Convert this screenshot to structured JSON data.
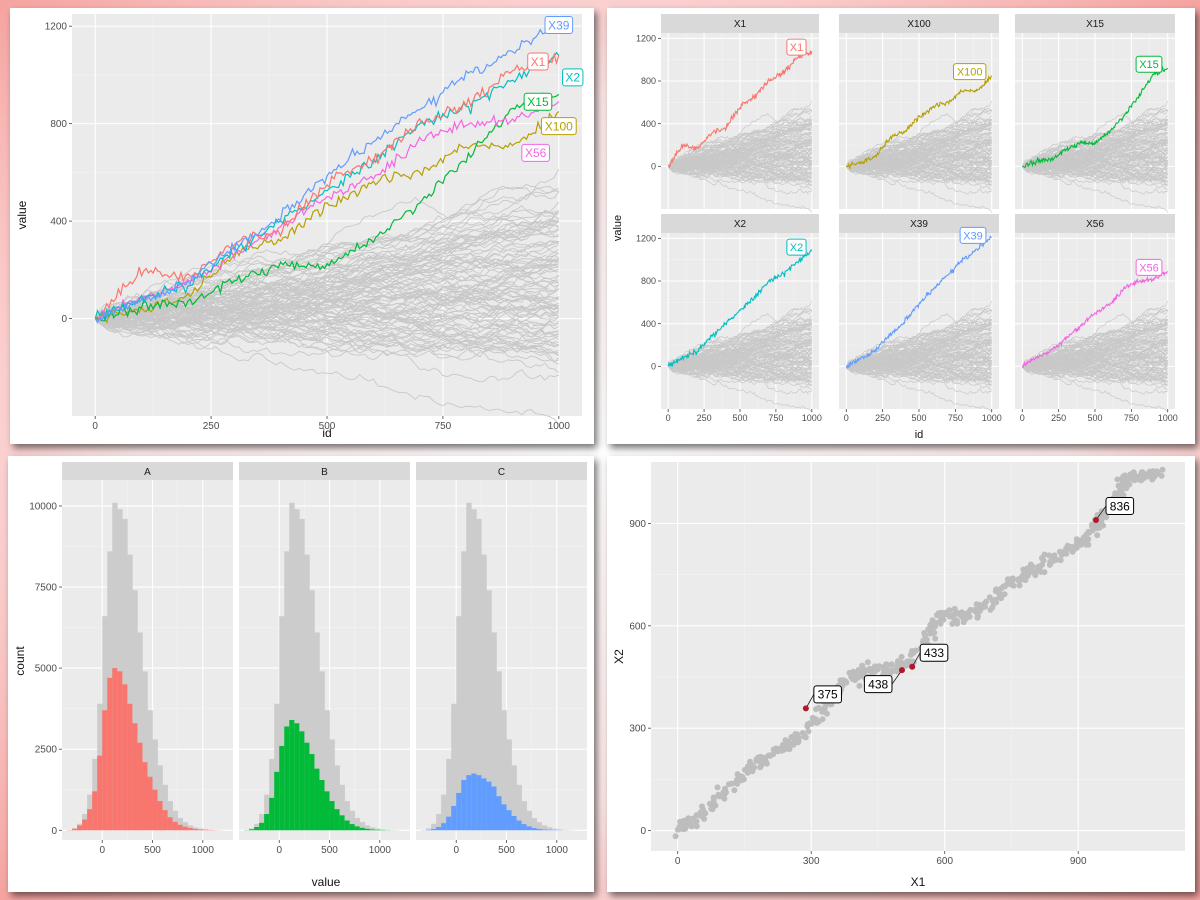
{
  "colors": {
    "X1": "#F8766D",
    "X2": "#00BFC4",
    "X15": "#00BA38",
    "X39": "#619CFF",
    "X56": "#F564E3",
    "X100": "#B79F00",
    "A": "#F8766D",
    "B": "#00BA38",
    "C": "#619CFF",
    "grey": "#c8c8c8",
    "point_hl": "#b2182b"
  },
  "chart_data": [
    {
      "type": "line",
      "title": "",
      "xlabel": "id",
      "ylabel": "value",
      "xlim": [
        -50,
        1050
      ],
      "ylim": [
        -400,
        1250
      ],
      "xticks": [
        0,
        250,
        500,
        750,
        1000
      ],
      "yticks": [
        0,
        400,
        800,
        1200
      ],
      "xtick_labels": [
        "0",
        "250",
        "500",
        "750",
        "1000"
      ],
      "ytick_labels": [
        "0",
        "400",
        "800",
        "1200"
      ],
      "background_series": "100 grey random-walk series (not individually legible)",
      "series": [
        {
          "name": "X39",
          "x": [
            0,
            100,
            200,
            300,
            400,
            500,
            600,
            700,
            800,
            900,
            1000
          ],
          "values": [
            0,
            70,
            150,
            290,
            420,
            580,
            730,
            860,
            990,
            1100,
            1210
          ]
        },
        {
          "name": "X1",
          "x": [
            0,
            100,
            200,
            300,
            400,
            500,
            600,
            700,
            800,
            900,
            1000
          ],
          "values": [
            0,
            190,
            170,
            310,
            360,
            560,
            650,
            800,
            880,
            1020,
            1080
          ]
        },
        {
          "name": "X2",
          "x": [
            0,
            100,
            200,
            300,
            400,
            500,
            600,
            700,
            800,
            900,
            1000
          ],
          "values": [
            0,
            90,
            130,
            280,
            400,
            520,
            650,
            800,
            860,
            980,
            1080
          ]
        },
        {
          "name": "X15",
          "x": [
            0,
            100,
            200,
            300,
            400,
            500,
            600,
            700,
            800,
            900,
            1000
          ],
          "values": [
            0,
            50,
            70,
            160,
            220,
            210,
            330,
            470,
            650,
            860,
            920
          ]
        },
        {
          "name": "X100",
          "x": [
            0,
            100,
            200,
            300,
            400,
            500,
            600,
            700,
            800,
            900,
            1000
          ],
          "values": [
            0,
            40,
            90,
            270,
            330,
            460,
            560,
            600,
            720,
            700,
            850
          ]
        },
        {
          "name": "X56",
          "x": [
            0,
            100,
            200,
            300,
            400,
            500,
            600,
            700,
            800,
            900,
            1000
          ],
          "values": [
            0,
            80,
            150,
            260,
            380,
            500,
            580,
            730,
            800,
            810,
            890
          ]
        }
      ],
      "labels": [
        "X39",
        "X1",
        "X2",
        "X15",
        "X100",
        "X56"
      ]
    },
    {
      "type": "line",
      "facets": [
        "X1",
        "X100",
        "X15",
        "X2",
        "X39",
        "X56"
      ],
      "xlabel": "id",
      "ylabel": "value",
      "xlim": [
        -50,
        1050
      ],
      "ylim": [
        -400,
        1250
      ],
      "xticks": [
        0,
        250,
        500,
        750,
        1000
      ],
      "yticks": [
        0,
        400,
        800,
        1200
      ],
      "xtick_labels": [
        "0",
        "250",
        "500",
        "750",
        "1000"
      ],
      "ytick_labels": [
        "0",
        "400",
        "800",
        "1200"
      ],
      "highlight": "each facet highlights its named series over the grey background series"
    },
    {
      "type": "bar",
      "subtype": "faceted histogram",
      "facets": [
        "A",
        "B",
        "C"
      ],
      "xlabel": "value",
      "ylabel": "count",
      "xlim": [
        -400,
        1300
      ],
      "ylim": [
        -300,
        10800
      ],
      "xticks": [
        0,
        500,
        1000
      ],
      "yticks": [
        0,
        2500,
        5000,
        7500,
        10000
      ],
      "xtick_labels": [
        "0",
        "500",
        "1000"
      ],
      "ytick_labels": [
        "0",
        "2500",
        "5000",
        "7500",
        "10000"
      ],
      "bin_width": 50,
      "bin_starts": [
        -350,
        -300,
        -250,
        -200,
        -150,
        -100,
        -50,
        0,
        50,
        100,
        150,
        200,
        250,
        300,
        350,
        400,
        450,
        500,
        550,
        600,
        650,
        700,
        750,
        800,
        850,
        900,
        950,
        1000,
        1050,
        1100,
        1150
      ],
      "total_counts": [
        10,
        60,
        200,
        500,
        1100,
        2200,
        3900,
        6600,
        8600,
        10100,
        9900,
        9600,
        8500,
        7400,
        6100,
        4900,
        3700,
        2800,
        2000,
        1400,
        900,
        600,
        380,
        250,
        150,
        90,
        50,
        30,
        15,
        8,
        3
      ],
      "series": [
        {
          "name": "A",
          "values": [
            8,
            50,
            150,
            330,
            650,
            1200,
            2300,
            3700,
            4700,
            5000,
            4900,
            4500,
            3900,
            3300,
            2700,
            2100,
            1650,
            1250,
            900,
            620,
            400,
            260,
            170,
            110,
            70,
            40,
            25,
            15,
            8,
            4,
            2
          ]
        },
        {
          "name": "B",
          "values": [
            5,
            30,
            100,
            230,
            500,
            1000,
            1800,
            2600,
            3200,
            3400,
            3300,
            3050,
            2700,
            2350,
            1900,
            1550,
            1200,
            900,
            650,
            460,
            300,
            190,
            120,
            75,
            45,
            25,
            15,
            8,
            4,
            2,
            1
          ]
        },
        {
          "name": "C",
          "values": [
            2,
            10,
            40,
            100,
            220,
            420,
            750,
            1150,
            1550,
            1700,
            1750,
            1700,
            1600,
            1500,
            1350,
            1050,
            800,
            620,
            440,
            300,
            190,
            120,
            70,
            40,
            25,
            15,
            8,
            5,
            2,
            1,
            0
          ]
        }
      ]
    },
    {
      "type": "scatter",
      "xlabel": "X1",
      "ylabel": "X2",
      "xlim": [
        -60,
        1140
      ],
      "ylim": [
        -60,
        1080
      ],
      "xticks": [
        0,
        300,
        600,
        900
      ],
      "yticks": [
        0,
        300,
        600,
        900
      ],
      "xtick_labels": [
        "0",
        "300",
        "600",
        "900"
      ],
      "ytick_labels": [
        "0",
        "300",
        "600",
        "900"
      ],
      "path_waypoints_x": [
        0,
        40,
        90,
        150,
        200,
        245,
        280,
        330,
        385,
        430,
        470,
        520,
        560,
        600,
        640,
        700,
        750,
        800,
        850,
        900,
        940,
        980,
        1010,
        1040,
        1080
      ],
      "path_waypoints_y": [
        0,
        35,
        95,
        170,
        220,
        245,
        280,
        360,
        440,
        470,
        470,
        490,
        560,
        640,
        620,
        660,
        730,
        760,
        800,
        840,
        910,
        960,
        1030,
        1045,
        1040
      ],
      "highlighted_points": [
        {
          "label": "836",
          "x": 940,
          "y": 910
        },
        {
          "label": "375",
          "x": 288,
          "y": 358
        },
        {
          "label": "438",
          "x": 504,
          "y": 470
        },
        {
          "label": "433",
          "x": 527,
          "y": 480
        }
      ]
    }
  ]
}
